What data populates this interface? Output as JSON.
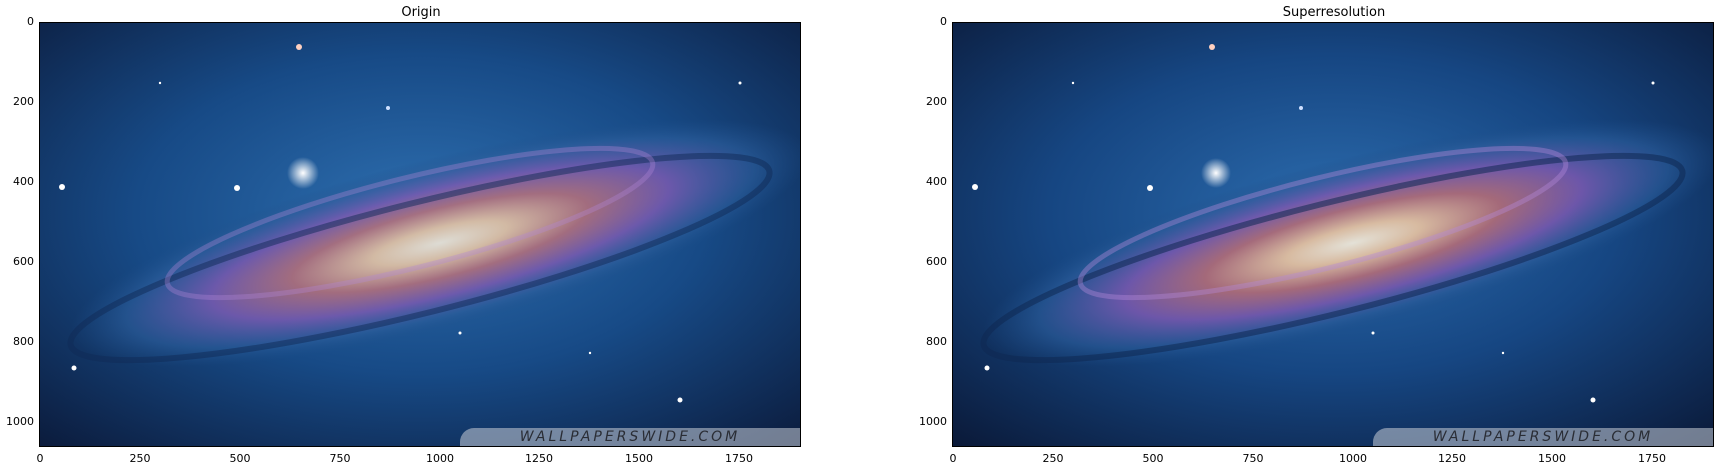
{
  "panels": [
    {
      "title": "Origin",
      "watermark": "WALLPAPERSWIDE.COM"
    },
    {
      "title": "Superresolution",
      "watermark": "WALLPAPERSWIDE.COM"
    }
  ],
  "axes": {
    "y_ticks": [
      "0",
      "200",
      "400",
      "600",
      "800",
      "1000"
    ],
    "x_ticks": [
      "0",
      "250",
      "500",
      "750",
      "1000",
      "1250",
      "1500",
      "1750"
    ]
  },
  "colors": {
    "space_dark": "#0b1a3a",
    "space_blue": "#1f5a9a",
    "core": "#f5dcc0",
    "arm_purple": "#9a6cc4"
  }
}
